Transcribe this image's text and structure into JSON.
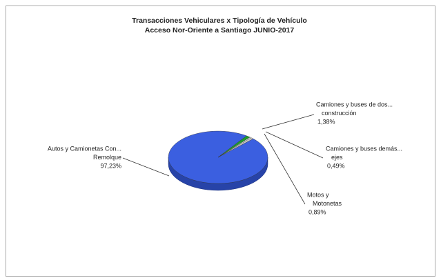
{
  "chart_data": {
    "type": "pie",
    "title": [
      "Transacciones Vehiculares x Tipología de Vehículo",
      "Acceso Nor-Oriente a Santiago JUNIO-2017"
    ],
    "categories": [
      [
        "Autos y Camionetas Con...",
        "Remolque"
      ],
      [
        "Camiones y buses de dos...",
        "construcción"
      ],
      [
        "Camiones y buses demás...",
        "ejes"
      ],
      [
        "Motos y",
        "Motonetas"
      ]
    ],
    "values": [
      97.23,
      1.38,
      0.49,
      0.89
    ],
    "value_labels": [
      "97,23%",
      "1,38%",
      "0,49%",
      "0,89%"
    ],
    "colors": [
      "#3b5fe0",
      "#1f9a2e",
      "#e8e8e8",
      "#c8c8c8"
    ]
  }
}
